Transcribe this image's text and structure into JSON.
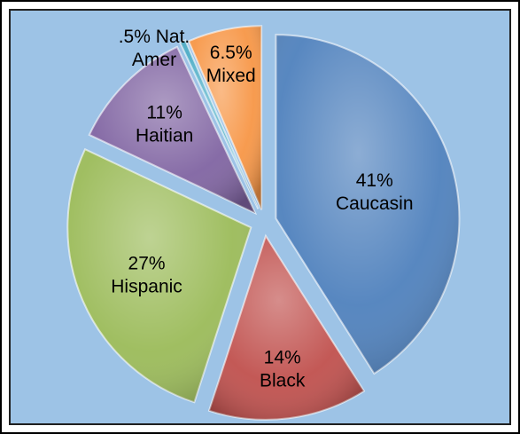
{
  "chart_data": {
    "type": "pie",
    "title": "",
    "legend": "none",
    "slices": [
      {
        "name": "Caucasin",
        "value": 41,
        "percent_label": "41%",
        "color": "#4f81bd"
      },
      {
        "name": "Black",
        "value": 14,
        "percent_label": "14%",
        "color": "#c0504d"
      },
      {
        "name": "Hispanic",
        "value": 27,
        "percent_label": "27%",
        "color": "#9bbb59"
      },
      {
        "name": "Haitian",
        "value": 11,
        "percent_label": "11%",
        "color": "#8064a2"
      },
      {
        "name": "Nat. Amer",
        "value": 0.5,
        "percent_label": ".5%",
        "color": "#4bacc6"
      },
      {
        "name": "Mixed",
        "value": 6.5,
        "percent_label": "6.5%",
        "color": "#f79646"
      }
    ]
  }
}
